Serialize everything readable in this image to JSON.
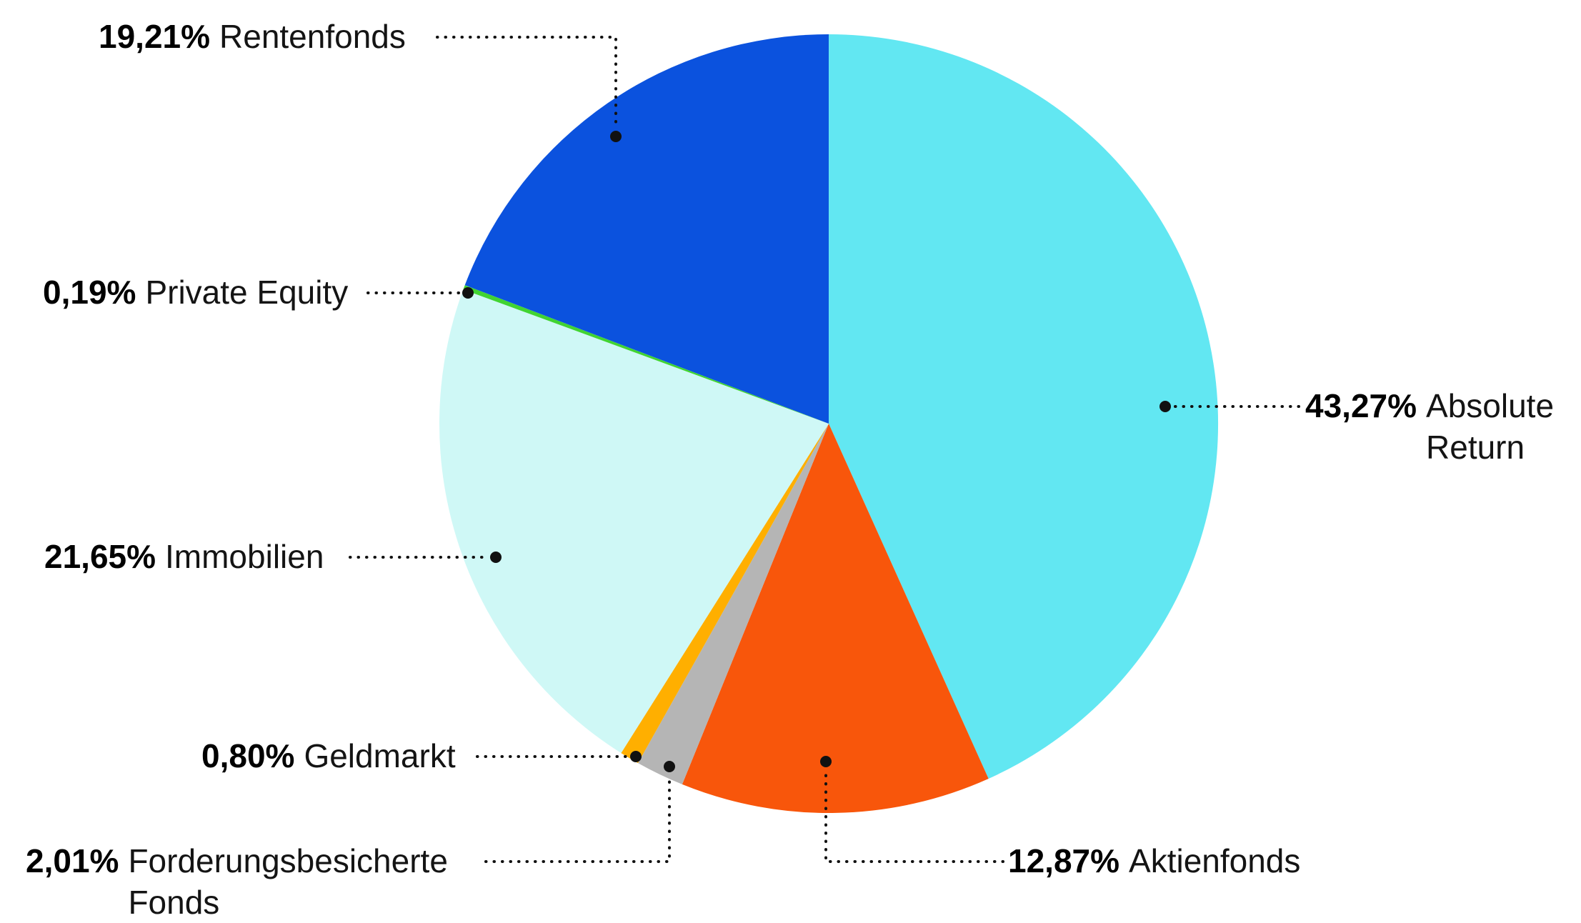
{
  "chart_data": {
    "type": "pie",
    "unit": "%",
    "start_angle_deg": 0,
    "direction": "clockwise",
    "legend": "callout-labels-with-dotted-leaders",
    "slices": [
      {
        "label": "Absolute Return",
        "value": 43.27,
        "display": "43,27%",
        "color": "#62E7F2"
      },
      {
        "label": "Aktienfonds",
        "value": 12.87,
        "display": "12,87%",
        "color": "#F8560B"
      },
      {
        "label": "Forderungsbesicherte Fonds",
        "value": 2.01,
        "display": "2,01%",
        "color": "#B5B5B5"
      },
      {
        "label": "Geldmarkt",
        "value": 0.8,
        "display": "0,80%",
        "color": "#FFAF00"
      },
      {
        "label": "Immobilien",
        "value": 21.65,
        "display": "21,65%",
        "color": "#CFF8F6"
      },
      {
        "label": "Private Equity",
        "value": 0.19,
        "display": "0,19%",
        "color": "#41D432"
      },
      {
        "label": "Rentenfonds",
        "value": 19.21,
        "display": "19,21%",
        "color": "#0B52DE"
      }
    ],
    "leader_color": "#111111",
    "background": "#FFFFFF"
  }
}
